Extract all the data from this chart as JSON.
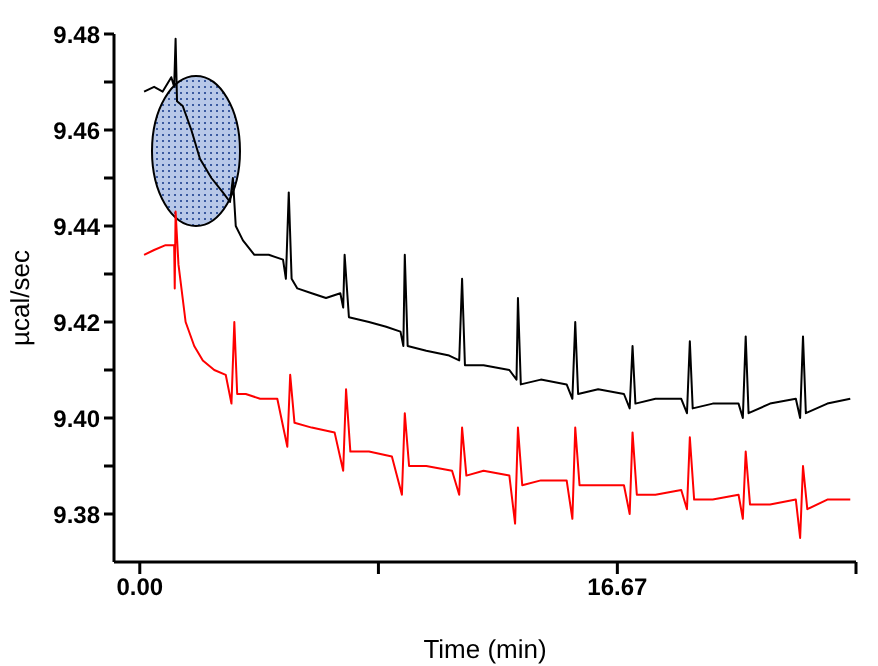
{
  "chart_data": {
    "type": "line",
    "xlabel": "Time (min)",
    "ylabel": "µcal/sec",
    "xlim": [
      -0.9,
      25
    ],
    "xticks": [
      {
        "value": 0,
        "label": "0.00"
      },
      {
        "value": 8.33,
        "label": null
      },
      {
        "value": 16.67,
        "label": "16.67"
      },
      {
        "value": 25,
        "label": null
      }
    ],
    "ylim": [
      9.37,
      9.48
    ],
    "yticks": [
      {
        "value": 9.38,
        "label": "9.38"
      },
      {
        "value": 9.39,
        "label": null
      },
      {
        "value": 9.4,
        "label": "9.40"
      },
      {
        "value": 9.41,
        "label": null
      },
      {
        "value": 9.42,
        "label": "9.42"
      },
      {
        "value": 9.43,
        "label": null
      },
      {
        "value": 9.44,
        "label": "9.44"
      },
      {
        "value": 9.45,
        "label": null
      },
      {
        "value": 9.46,
        "label": "9.46"
      },
      {
        "value": 9.47,
        "label": null
      },
      {
        "value": 9.48,
        "label": "9.48"
      }
    ],
    "marker": "none",
    "line_style": "solid",
    "series": [
      {
        "color": "#000000",
        "x": [
          0.15,
          0.5,
          0.8,
          1.1,
          1.2,
          1.25,
          1.3,
          1.5,
          1.8,
          2.1,
          2.5,
          2.9,
          3.15,
          3.25,
          3.35,
          3.6,
          4.0,
          4.5,
          5.0,
          5.1,
          5.2,
          5.3,
          5.5,
          6.0,
          6.5,
          7.0,
          7.1,
          7.15,
          7.3,
          8.0,
          8.6,
          9.1,
          9.2,
          9.25,
          9.35,
          10.0,
          10.8,
          11.15,
          11.25,
          11.35,
          12.0,
          12.9,
          13.15,
          13.2,
          13.3,
          14.0,
          14.9,
          15.1,
          15.2,
          15.3,
          16.0,
          16.9,
          17.1,
          17.2,
          17.3,
          18.0,
          18.9,
          19.1,
          19.2,
          19.3,
          20.0,
          20.9,
          21.05,
          21.15,
          21.25,
          22.0,
          22.9,
          23.05,
          23.15,
          23.25,
          24.0,
          24.8
        ],
        "values": [
          9.468,
          9.469,
          9.468,
          9.471,
          9.469,
          9.479,
          9.466,
          9.465,
          9.46,
          9.454,
          9.45,
          9.447,
          9.445,
          9.45,
          9.44,
          9.437,
          9.434,
          9.434,
          9.433,
          9.429,
          9.447,
          9.429,
          9.427,
          9.426,
          9.425,
          9.426,
          9.423,
          9.434,
          9.421,
          9.42,
          9.419,
          9.418,
          9.415,
          9.434,
          9.415,
          9.414,
          9.413,
          9.412,
          9.429,
          9.411,
          9.411,
          9.41,
          9.408,
          9.425,
          9.407,
          9.408,
          9.407,
          9.404,
          9.42,
          9.405,
          9.406,
          9.405,
          9.402,
          9.415,
          9.403,
          9.404,
          9.404,
          9.401,
          9.416,
          9.402,
          9.403,
          9.403,
          9.4,
          9.417,
          9.401,
          9.403,
          9.404,
          9.4,
          9.417,
          9.401,
          9.403,
          9.404
        ]
      },
      {
        "color": "#ff0000",
        "x": [
          0.15,
          0.5,
          0.9,
          1.2,
          1.22,
          1.25,
          1.35,
          1.6,
          1.9,
          2.2,
          2.6,
          3.0,
          3.2,
          3.3,
          3.4,
          3.7,
          4.2,
          4.8,
          5.15,
          5.25,
          5.4,
          6.0,
          6.8,
          7.1,
          7.2,
          7.35,
          8.0,
          8.8,
          9.15,
          9.25,
          9.4,
          10.0,
          10.9,
          11.15,
          11.25,
          11.4,
          12.0,
          12.9,
          13.1,
          13.2,
          13.35,
          14.0,
          14.9,
          15.1,
          15.2,
          15.35,
          16.0,
          16.9,
          17.1,
          17.2,
          17.35,
          18.0,
          18.9,
          19.1,
          19.2,
          19.35,
          20.0,
          20.9,
          21.05,
          21.15,
          21.3,
          22.0,
          22.9,
          23.05,
          23.15,
          23.3,
          24.0,
          24.8
        ],
        "values": [
          9.434,
          9.435,
          9.436,
          9.436,
          9.427,
          9.443,
          9.432,
          9.42,
          9.415,
          9.412,
          9.41,
          9.409,
          9.403,
          9.42,
          9.405,
          9.405,
          9.404,
          9.404,
          9.394,
          9.409,
          9.399,
          9.398,
          9.397,
          9.389,
          9.406,
          9.393,
          9.393,
          9.392,
          9.384,
          9.401,
          9.39,
          9.39,
          9.389,
          9.384,
          9.398,
          9.388,
          9.389,
          9.388,
          9.378,
          9.398,
          9.386,
          9.387,
          9.387,
          9.379,
          9.398,
          9.386,
          9.386,
          9.386,
          9.38,
          9.397,
          9.384,
          9.384,
          9.385,
          9.381,
          9.396,
          9.383,
          9.383,
          9.384,
          9.379,
          9.393,
          9.382,
          9.382,
          9.383,
          9.375,
          9.39,
          9.381,
          9.383,
          9.383
        ]
      }
    ]
  }
}
